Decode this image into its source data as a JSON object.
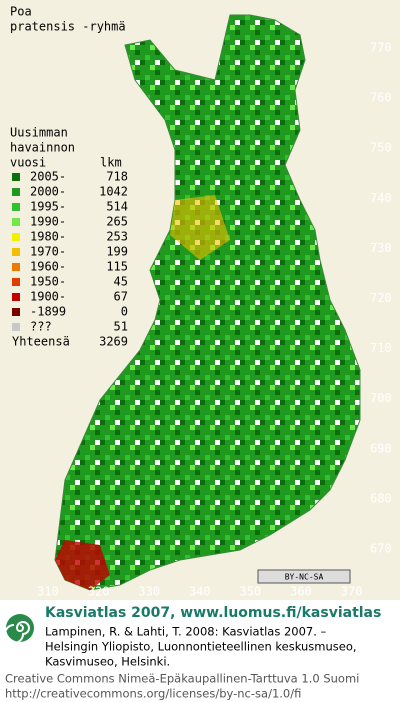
{
  "title": [
    "Poa",
    "pratensis -ryhmä"
  ],
  "legend": {
    "header": [
      "Uusimman",
      "havainnon",
      "vuosi"
    ],
    "count_header": "lkm",
    "rows": [
      {
        "label": "2005-",
        "count": 718,
        "color": "#0a6e0a"
      },
      {
        "label": "2000-",
        "count": 1042,
        "color": "#1f9a1f"
      },
      {
        "label": "1995-",
        "count": 514,
        "color": "#2fc22f"
      },
      {
        "label": "1990-",
        "count": 265,
        "color": "#6ee84a"
      },
      {
        "label": "1980-",
        "count": 253,
        "color": "#f0f000"
      },
      {
        "label": "1970-",
        "count": 199,
        "color": "#f0c000"
      },
      {
        "label": "1960-",
        "count": 115,
        "color": "#f07800"
      },
      {
        "label": "1950-",
        "count": 45,
        "color": "#e03c00"
      },
      {
        "label": "1900-",
        "count": 67,
        "color": "#c00000"
      },
      {
        "label": "-1899",
        "count": 0,
        "color": "#7a0000"
      },
      {
        "label": "???",
        "count": 51,
        "color": "#c8c8c8"
      }
    ],
    "total_label": "Yhteensä",
    "total": 3269
  },
  "y_ticks": [
    770,
    760,
    750,
    740,
    730,
    720,
    710,
    700,
    690,
    680,
    670
  ],
  "x_ticks": [
    310,
    320,
    330,
    340,
    350,
    360,
    370
  ],
  "badge": "BY-NC-SA",
  "footer": {
    "heading": "Kasviatlas 2007, www.luomus.fi/kasviatlas",
    "citation": [
      "Lampinen, R. & Lahti, T. 2008: Kasviatlas 2007. –",
      "Helsingin Yliopisto, Luonnontieteellinen keskusmuseo,",
      "Kasvimuseo, Helsinki."
    ],
    "license": [
      "Creative Commons Nimeä-Epäkaupallinen-Tarttuva 1.0 Suomi",
      "http://creativecommons.org/licenses/by-nc-sa/1.0/fi"
    ]
  }
}
